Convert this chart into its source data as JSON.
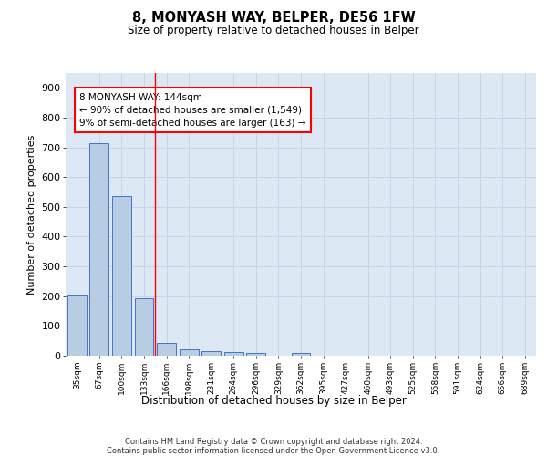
{
  "title1": "8, MONYASH WAY, BELPER, DE56 1FW",
  "title2": "Size of property relative to detached houses in Belper",
  "xlabel": "Distribution of detached houses by size in Belper",
  "ylabel": "Number of detached properties",
  "categories": [
    "35sqm",
    "67sqm",
    "100sqm",
    "133sqm",
    "166sqm",
    "198sqm",
    "231sqm",
    "264sqm",
    "296sqm",
    "329sqm",
    "362sqm",
    "395sqm",
    "427sqm",
    "460sqm",
    "493sqm",
    "525sqm",
    "558sqm",
    "591sqm",
    "624sqm",
    "656sqm",
    "689sqm"
  ],
  "values": [
    202,
    714,
    536,
    193,
    42,
    20,
    15,
    13,
    10,
    0,
    10,
    0,
    0,
    0,
    0,
    0,
    0,
    0,
    0,
    0,
    0
  ],
  "bar_color": "#b8cce4",
  "bar_edge_color": "#4472c4",
  "grid_color": "#c8d4e4",
  "background_color": "#dce8f4",
  "vline_x": 3.5,
  "annotation_lines": [
    "8 MONYASH WAY: 144sqm",
    "← 90% of detached houses are smaller (1,549)",
    "9% of semi-detached houses are larger (163) →"
  ],
  "ylim": [
    0,
    950
  ],
  "yticks": [
    0,
    100,
    200,
    300,
    400,
    500,
    600,
    700,
    800,
    900
  ],
  "footnote1": "Contains HM Land Registry data © Crown copyright and database right 2024.",
  "footnote2": "Contains public sector information licensed under the Open Government Licence v3.0."
}
